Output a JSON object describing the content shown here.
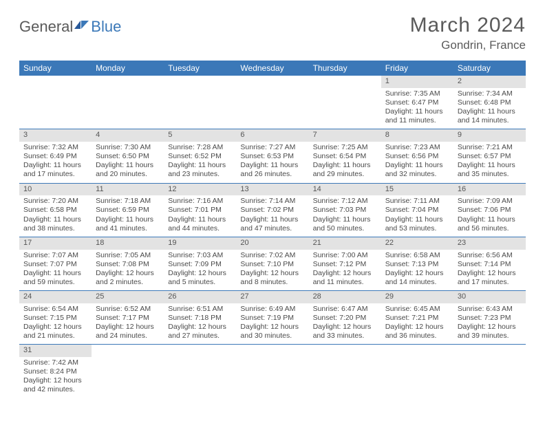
{
  "brand": {
    "part1": "General",
    "part2": "Blue"
  },
  "title": "March 2024",
  "location": "Gondrin, France",
  "colors": {
    "header_bg": "#3b78b8",
    "header_text": "#ffffff",
    "daynum_bg": "#e3e3e3",
    "text": "#4a4a4a",
    "rule": "#3b78b8"
  },
  "day_headers": [
    "Sunday",
    "Monday",
    "Tuesday",
    "Wednesday",
    "Thursday",
    "Friday",
    "Saturday"
  ],
  "weeks": [
    [
      null,
      null,
      null,
      null,
      null,
      {
        "n": "1",
        "sr": "7:35 AM",
        "ss": "6:47 PM",
        "dl": "11 hours and 11 minutes."
      },
      {
        "n": "2",
        "sr": "7:34 AM",
        "ss": "6:48 PM",
        "dl": "11 hours and 14 minutes."
      }
    ],
    [
      {
        "n": "3",
        "sr": "7:32 AM",
        "ss": "6:49 PM",
        "dl": "11 hours and 17 minutes."
      },
      {
        "n": "4",
        "sr": "7:30 AM",
        "ss": "6:50 PM",
        "dl": "11 hours and 20 minutes."
      },
      {
        "n": "5",
        "sr": "7:28 AM",
        "ss": "6:52 PM",
        "dl": "11 hours and 23 minutes."
      },
      {
        "n": "6",
        "sr": "7:27 AM",
        "ss": "6:53 PM",
        "dl": "11 hours and 26 minutes."
      },
      {
        "n": "7",
        "sr": "7:25 AM",
        "ss": "6:54 PM",
        "dl": "11 hours and 29 minutes."
      },
      {
        "n": "8",
        "sr": "7:23 AM",
        "ss": "6:56 PM",
        "dl": "11 hours and 32 minutes."
      },
      {
        "n": "9",
        "sr": "7:21 AM",
        "ss": "6:57 PM",
        "dl": "11 hours and 35 minutes."
      }
    ],
    [
      {
        "n": "10",
        "sr": "7:20 AM",
        "ss": "6:58 PM",
        "dl": "11 hours and 38 minutes."
      },
      {
        "n": "11",
        "sr": "7:18 AM",
        "ss": "6:59 PM",
        "dl": "11 hours and 41 minutes."
      },
      {
        "n": "12",
        "sr": "7:16 AM",
        "ss": "7:01 PM",
        "dl": "11 hours and 44 minutes."
      },
      {
        "n": "13",
        "sr": "7:14 AM",
        "ss": "7:02 PM",
        "dl": "11 hours and 47 minutes."
      },
      {
        "n": "14",
        "sr": "7:12 AM",
        "ss": "7:03 PM",
        "dl": "11 hours and 50 minutes."
      },
      {
        "n": "15",
        "sr": "7:11 AM",
        "ss": "7:04 PM",
        "dl": "11 hours and 53 minutes."
      },
      {
        "n": "16",
        "sr": "7:09 AM",
        "ss": "7:06 PM",
        "dl": "11 hours and 56 minutes."
      }
    ],
    [
      {
        "n": "17",
        "sr": "7:07 AM",
        "ss": "7:07 PM",
        "dl": "11 hours and 59 minutes."
      },
      {
        "n": "18",
        "sr": "7:05 AM",
        "ss": "7:08 PM",
        "dl": "12 hours and 2 minutes."
      },
      {
        "n": "19",
        "sr": "7:03 AM",
        "ss": "7:09 PM",
        "dl": "12 hours and 5 minutes."
      },
      {
        "n": "20",
        "sr": "7:02 AM",
        "ss": "7:10 PM",
        "dl": "12 hours and 8 minutes."
      },
      {
        "n": "21",
        "sr": "7:00 AM",
        "ss": "7:12 PM",
        "dl": "12 hours and 11 minutes."
      },
      {
        "n": "22",
        "sr": "6:58 AM",
        "ss": "7:13 PM",
        "dl": "12 hours and 14 minutes."
      },
      {
        "n": "23",
        "sr": "6:56 AM",
        "ss": "7:14 PM",
        "dl": "12 hours and 17 minutes."
      }
    ],
    [
      {
        "n": "24",
        "sr": "6:54 AM",
        "ss": "7:15 PM",
        "dl": "12 hours and 21 minutes."
      },
      {
        "n": "25",
        "sr": "6:52 AM",
        "ss": "7:17 PM",
        "dl": "12 hours and 24 minutes."
      },
      {
        "n": "26",
        "sr": "6:51 AM",
        "ss": "7:18 PM",
        "dl": "12 hours and 27 minutes."
      },
      {
        "n": "27",
        "sr": "6:49 AM",
        "ss": "7:19 PM",
        "dl": "12 hours and 30 minutes."
      },
      {
        "n": "28",
        "sr": "6:47 AM",
        "ss": "7:20 PM",
        "dl": "12 hours and 33 minutes."
      },
      {
        "n": "29",
        "sr": "6:45 AM",
        "ss": "7:21 PM",
        "dl": "12 hours and 36 minutes."
      },
      {
        "n": "30",
        "sr": "6:43 AM",
        "ss": "7:23 PM",
        "dl": "12 hours and 39 minutes."
      }
    ],
    [
      {
        "n": "31",
        "sr": "7:42 AM",
        "ss": "8:24 PM",
        "dl": "12 hours and 42 minutes."
      },
      null,
      null,
      null,
      null,
      null,
      null
    ]
  ],
  "labels": {
    "sunrise": "Sunrise:",
    "sunset": "Sunset:",
    "daylight": "Daylight:"
  }
}
